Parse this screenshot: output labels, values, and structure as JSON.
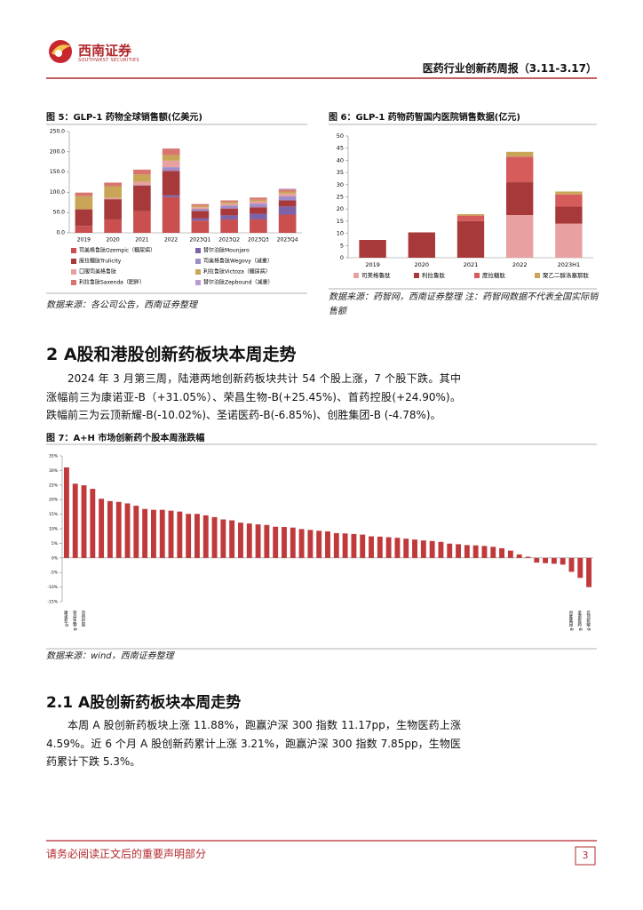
{
  "header": {
    "logo_cn": "西南证券",
    "logo_en": "SOUTHWEST SECURITIES",
    "title": "医药行业创新药周报（3.11-3.17）"
  },
  "chart_data": [
    {
      "type": "stacked_bar",
      "title": "图 5：GLP-1 药物全球销售额(亿美元)",
      "categories": [
        "2019",
        "2020",
        "2021",
        "2022",
        "2023Q1",
        "2023Q2",
        "2023Q3",
        "2023Q4"
      ],
      "series": [
        {
          "name": "司美格鲁肽Ozempic（糖尿病）",
          "color": "#c9504f",
          "values": [
            17,
            33,
            53,
            88,
            30,
            33,
            33,
            45
          ]
        },
        {
          "name": "替尔泊肽Mounjaro",
          "color": "#7d62a8",
          "values": [
            0,
            0,
            0,
            5,
            6,
            10,
            14,
            20
          ]
        },
        {
          "name": "度拉糖肽Trulicity",
          "color": "#a8393a",
          "values": [
            41,
            50,
            64,
            60,
            18,
            17,
            16,
            15
          ]
        },
        {
          "name": "司美格鲁肽Wegovy（减重）",
          "color": "#a08cc8",
          "values": [
            0,
            0,
            1,
            9,
            5,
            7,
            9,
            10
          ]
        },
        {
          "name": "口服司美格鲁肽",
          "color": "#e8a0a0",
          "values": [
            0.3,
            3,
            8,
            16,
            4,
            5,
            6,
            7
          ]
        },
        {
          "name": "利拉鲁肽Victoza（糖尿病）",
          "color": "#c9a557",
          "values": [
            32,
            29,
            18,
            14,
            4,
            4,
            4,
            5
          ]
        },
        {
          "name": "利拉鲁肽Saxenda（肥胖）",
          "color": "#d8756f",
          "values": [
            9,
            9,
            12,
            16,
            4,
            4,
            5,
            5
          ]
        },
        {
          "name": "替尔泊肽Zepbound（减重）",
          "color": "#b79ad6",
          "values": [
            0,
            0,
            0,
            0,
            0,
            0,
            0,
            2
          ]
        }
      ],
      "ylim": [
        0,
        250
      ],
      "yticks": [
        {
          "value": 0,
          "label": "0.0"
        },
        {
          "value": 50,
          "label": "50.0"
        },
        {
          "value": 100,
          "label": "100.0"
        },
        {
          "value": 150,
          "label": "150.0"
        },
        {
          "value": 200,
          "label": "200.0"
        },
        {
          "value": 250,
          "label": "250.0"
        }
      ],
      "grid": false,
      "source": "数据来源：各公司公告，西南证券整理"
    },
    {
      "type": "stacked_bar",
      "title": "图 6：GLP-1 药物药智国内医院销售数据(亿元)",
      "categories": [
        "2019",
        "2020",
        "2021",
        "2022",
        "2023H1"
      ],
      "series": [
        {
          "name": "司美格鲁肽",
          "color": "#e8a0a0",
          "values": [
            0,
            0,
            0,
            17.5,
            14
          ]
        },
        {
          "name": "利拉鲁肽",
          "color": "#a8393a",
          "values": [
            7.3,
            10.4,
            15,
            13.5,
            7
          ]
        },
        {
          "name": "度拉糖肽",
          "color": "#d65c5c",
          "values": [
            0,
            0,
            2.3,
            10.5,
            5
          ]
        },
        {
          "name": "聚乙二醇洛塞那肽",
          "color": "#c9a557",
          "values": [
            0,
            0,
            0.6,
            2,
            1.2
          ]
        }
      ],
      "ylim": [
        0,
        50
      ],
      "yticks": [
        0,
        5,
        10,
        15,
        20,
        25,
        30,
        35,
        40,
        45,
        50
      ],
      "grid": false,
      "source": "数据来源：药智网，西南证券整理 注：药智网数据不代表全国实际销售额"
    },
    {
      "type": "bar",
      "title": "图 7：A+H 市场创新药个股本周涨跌幅",
      "categories": [
        "康诺亚-B",
        "荣昌生物-B",
        "首药控股",
        null,
        null,
        null,
        null,
        null,
        null,
        null,
        null,
        null,
        null,
        null,
        null,
        null,
        null,
        null,
        null,
        null,
        null,
        null,
        null,
        null,
        null,
        null,
        null,
        null,
        null,
        null,
        null,
        null,
        null,
        null,
        null,
        null,
        null,
        null,
        null,
        null,
        null,
        null,
        null,
        null,
        null,
        null,
        null,
        null,
        null,
        null,
        null,
        null,
        null,
        null,
        null,
        null,
        null,
        null,
        "创胜集团-B",
        "圣诺医药-B",
        "云顶新耀-B"
      ],
      "values": [
        31.05,
        25.45,
        24.9,
        23.7,
        20.3,
        19.5,
        19.2,
        18.7,
        17.9,
        16.8,
        16.5,
        16.5,
        16.2,
        15.9,
        15.1,
        15.1,
        14.6,
        14.0,
        13.2,
        12.9,
        12.1,
        11.8,
        11.5,
        11.3,
        10.7,
        10.6,
        10.4,
        9.9,
        9.6,
        9.3,
        9.1,
        8.5,
        8.4,
        8.2,
        8.0,
        7.4,
        7.3,
        7.1,
        6.9,
        6.6,
        6.3,
        6.0,
        5.8,
        5.5,
        4.9,
        4.7,
        4.4,
        4.3,
        4.1,
        3.8,
        3.3,
        2.5,
        1.2,
        0.4,
        -1.6,
        -1.8,
        -2.0,
        -2.3,
        -4.78,
        -6.85,
        -10.02
      ],
      "color": "#c0393b",
      "ylim": [
        -15,
        35
      ],
      "yticks": [
        {
          "value": -15,
          "label": "-15%"
        },
        {
          "value": -10,
          "label": "-10%"
        },
        {
          "value": -5,
          "label": "-5%"
        },
        {
          "value": 0,
          "label": "0%"
        },
        {
          "value": 5,
          "label": "5%"
        },
        {
          "value": 10,
          "label": "10%"
        },
        {
          "value": 15,
          "label": "15%"
        },
        {
          "value": 20,
          "label": "20%"
        },
        {
          "value": 25,
          "label": "25%"
        },
        {
          "value": 30,
          "label": "30%"
        },
        {
          "value": 35,
          "label": "35%"
        }
      ],
      "grid": false,
      "source": "数据来源：wind，西南证券整理"
    }
  ],
  "section": {
    "heading": "2 A股和港股创新药板块本周走势",
    "paragraph": "2024 年 3 月第三周，陆港两地创新药板块共计 54 个股上涨，7 个股下跌。其中涨幅前三为康诺亚-B（+31.05%）、荣昌生物-B(+25.45%)、首药控股(+24.90%)。跌幅前三为云顶新耀-B(-10.02%)、圣诺医药-B(-6.85%)、创胜集团-B (-4.78%)。"
  },
  "subsection": {
    "heading": "2.1 A股创新药板块本周走势",
    "paragraph": "本周 A 股创新药板块上涨 11.88%，跑赢沪深 300 指数 11.17pp，生物医药上涨 4.59%。近 6 个月 A 股创新药累计上涨 3.21%，跑赢沪深 300 指数 7.85pp，生物医药累计下跌 5.3%。"
  },
  "footer": {
    "disclaimer": "请务必阅读正文后的重要声明部分",
    "page": "3"
  }
}
